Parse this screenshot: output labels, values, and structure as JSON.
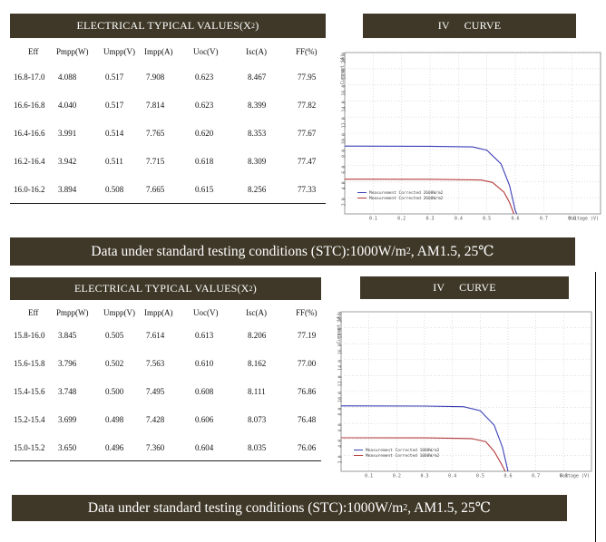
{
  "section1": {
    "table_title": "ELECTRICAL TYPICAL VALUES(X",
    "table_title_sup": "2",
    "table_title_end": ")",
    "curve_title": "IV     CURVE",
    "columns": [
      "Eff",
      "Pmpp(W)",
      "Umpp(V)",
      "Impp(A)",
      "Uoc(V)",
      "Isc(A)",
      "FF(%)"
    ],
    "rows": [
      [
        "16.8-17.0",
        "4.088",
        "0.517",
        "7.908",
        "0.623",
        "8.467",
        "77.95"
      ],
      [
        "16.6-16.8",
        "4.040",
        "0.517",
        "7.814",
        "0.623",
        "8.399",
        "77.82"
      ],
      [
        "16.4-16.6",
        "3.991",
        "0.514",
        "7.765",
        "0.620",
        "8.353",
        "77.67"
      ],
      [
        "16.2-16.4",
        "3.942",
        "0.511",
        "7.715",
        "0.618",
        "8.309",
        "77.47"
      ],
      [
        "16.0-16.2",
        "3.894",
        "0.508",
        "7.665",
        "0.615",
        "8.256",
        "77.33"
      ]
    ],
    "stc_text_pre": "Data under standard testing conditions (STC):1000W/m",
    "stc_sup": "2",
    "stc_text_post": ", AM1.5, 25℃"
  },
  "section2": {
    "table_title": "ELECTRICAL TYPICAL VALUES(X",
    "table_title_sup": "2",
    "table_title_end": ")",
    "curve_title": "IV     CURVE",
    "columns": [
      "Eff",
      "Pmpp(W)",
      "Umpp(V)",
      "Impp(A)",
      "Uoc(V)",
      "Isc(A)",
      "FF(%)"
    ],
    "rows": [
      [
        "15.8-16.0",
        "3.845",
        "0.505",
        "7.614",
        "0.613",
        "8.206",
        "77.19"
      ],
      [
        "15.6-15.8",
        "3.796",
        "0.502",
        "7.563",
        "0.610",
        "8.162",
        "77.00"
      ],
      [
        "15.4-15.6",
        "3.748",
        "0.500",
        "7.495",
        "0.608",
        "8.111",
        "76.86"
      ],
      [
        "15.2-15.4",
        "3.699",
        "0.498",
        "7.428",
        "0.606",
        "8.073",
        "76.48"
      ],
      [
        "15.0-15.2",
        "3.650",
        "0.496",
        "7.360",
        "0.604",
        "8.035",
        "76.06"
      ]
    ],
    "stc_text_pre": "Data under standard testing conditions (STC):1000W/m",
    "stc_sup": "2",
    "stc_text_post": ", AM1.5, 25℃"
  },
  "chart_data": [
    {
      "type": "line",
      "title": "",
      "xlabel": "Voltage (V)",
      "ylabel": "Current (A)",
      "xlim": [
        0,
        0.9
      ],
      "ylim": [
        0,
        20
      ],
      "x_ticks": [
        "0.1",
        "0.2",
        "0.3",
        "0.4",
        "0.5",
        "0.6",
        "0.7",
        "0.8"
      ],
      "y_ticks": [
        "2.0",
        "4.0",
        "6.0",
        "8.0",
        "10.0",
        "12.0",
        "14.0",
        "16.0",
        "18.0",
        "20.0"
      ],
      "grid": true,
      "legend": "bottom-left",
      "legend_entries": [
        "Measurement Corrected 2600W/m2",
        "Measurement Corrected 2600W/m2"
      ],
      "series": [
        {
          "color": "#3b3fb5",
          "values": [
            [
              0,
              8.4
            ],
            [
              0.3,
              8.38
            ],
            [
              0.45,
              8.3
            ],
            [
              0.5,
              7.9
            ],
            [
              0.55,
              6.2
            ],
            [
              0.58,
              3.5
            ],
            [
              0.6,
              0.4
            ],
            [
              0.605,
              0
            ]
          ]
        },
        {
          "color": "#b53b3b",
          "values": [
            [
              0,
              4.3
            ],
            [
              0.3,
              4.29
            ],
            [
              0.48,
              4.2
            ],
            [
              0.52,
              3.9
            ],
            [
              0.56,
              2.7
            ],
            [
              0.58,
              1.4
            ],
            [
              0.595,
              0
            ]
          ]
        }
      ]
    },
    {
      "type": "line",
      "title": "",
      "xlabel": "Voltage (V)",
      "ylabel": "Current (A)",
      "xlim": [
        0,
        0.9
      ],
      "ylim": [
        0,
        20
      ],
      "x_ticks": [
        "0.1",
        "0.2",
        "0.3",
        "0.4",
        "0.5",
        "0.6",
        "0.7",
        "0.8"
      ],
      "y_ticks": [
        "2.0",
        "4.0",
        "6.0",
        "8.0",
        "10.0",
        "12.0",
        "14.0",
        "16.0",
        "18.0",
        "20.0"
      ],
      "grid": true,
      "legend": "bottom-left",
      "legend_entries": [
        "Measurement Corrected 1000W/m2",
        "Measurement Corrected 1000W/m2"
      ],
      "series": [
        {
          "color": "#3b3fb5",
          "values": [
            [
              0,
              8.2
            ],
            [
              0.3,
              8.18
            ],
            [
              0.44,
              8.1
            ],
            [
              0.5,
              7.6
            ],
            [
              0.55,
              5.8
            ],
            [
              0.58,
              3.0
            ],
            [
              0.6,
              0
            ]
          ]
        },
        {
          "color": "#b53b3b",
          "values": [
            [
              0,
              4.2
            ],
            [
              0.3,
              4.19
            ],
            [
              0.47,
              4.1
            ],
            [
              0.52,
              3.7
            ],
            [
              0.55,
              2.5
            ],
            [
              0.575,
              1.0
            ],
            [
              0.59,
              0
            ]
          ]
        }
      ]
    }
  ]
}
